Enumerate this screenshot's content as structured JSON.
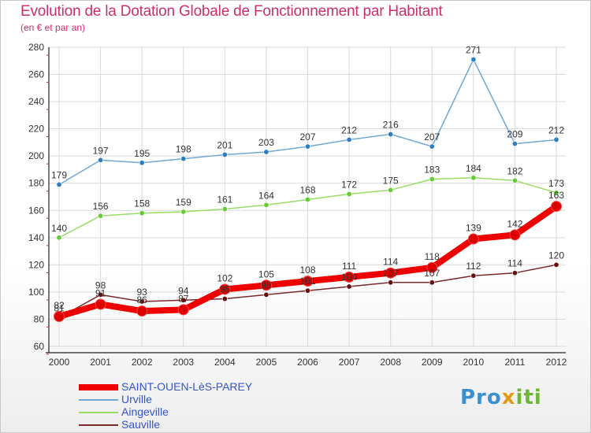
{
  "page": {
    "title": "Evolution de la Dotation Globale de Fonctionnement par Habitant",
    "subtitle": "(en € et par an)",
    "logo_text": "Proxiti"
  },
  "colors": {
    "title": "#cc2f6b",
    "axis_text": "#333333",
    "grid": "#d9d9d9",
    "legend_text": "#3355cc"
  },
  "chart_data": {
    "type": "line",
    "title": "Evolution de la Dotation Globale de Fonctionnement par Habitant",
    "subtitle": "(en € et par an)",
    "xlabel": "",
    "ylabel": "",
    "x": [
      "2000",
      "2001",
      "2002",
      "2003",
      "2004",
      "2005",
      "2006",
      "2007",
      "2008",
      "2009",
      "2010",
      "2011",
      "2012"
    ],
    "ylim": [
      60,
      280
    ],
    "yticks": [
      60,
      80,
      100,
      120,
      140,
      160,
      180,
      200,
      220,
      240,
      260,
      280
    ],
    "grid": true,
    "legend_position": "bottom-left",
    "series": [
      {
        "name": "SAINT-OUEN-LèS-PAREY",
        "color": "#ee0000",
        "marker_color": "#dd0000",
        "emphasis": true,
        "values": [
          82,
          91,
          86,
          87,
          102,
          105,
          108,
          111,
          114,
          118,
          139,
          142,
          163
        ],
        "labels": [
          "82",
          "91",
          "86",
          "87",
          "102",
          "105",
          "108",
          "111",
          "114",
          "118",
          "139",
          "142",
          "163"
        ]
      },
      {
        "name": "Urville",
        "color": "#6fa8d6",
        "marker_color": "#2d7ec2",
        "emphasis": false,
        "values": [
          179,
          197,
          195,
          198,
          201,
          203,
          207,
          212,
          216,
          207,
          271,
          209,
          212
        ],
        "labels": [
          "179",
          "197",
          "195",
          "198",
          "201",
          "203",
          "207",
          "212",
          "216",
          "207",
          "271",
          "209",
          "212"
        ]
      },
      {
        "name": "Aingeville",
        "color": "#99dd66",
        "marker_color": "#66cc33",
        "emphasis": false,
        "values": [
          140,
          156,
          158,
          159,
          161,
          164,
          168,
          172,
          175,
          183,
          184,
          182,
          173
        ],
        "labels": [
          "140",
          "156",
          "158",
          "159",
          "161",
          "164",
          "168",
          "172",
          "175",
          "183",
          "184",
          "182",
          "173"
        ]
      },
      {
        "name": "Sauville",
        "color": "#7a2a2a",
        "marker_color": "#661111",
        "emphasis": false,
        "values": [
          81,
          98,
          93,
          94,
          95,
          98,
          101,
          104,
          107,
          107,
          112,
          114,
          120
        ],
        "labels": [
          "81",
          "98",
          "93",
          "94",
          "95",
          "98",
          "101",
          "104",
          "107",
          "107",
          "112",
          "114",
          "120"
        ]
      }
    ]
  }
}
